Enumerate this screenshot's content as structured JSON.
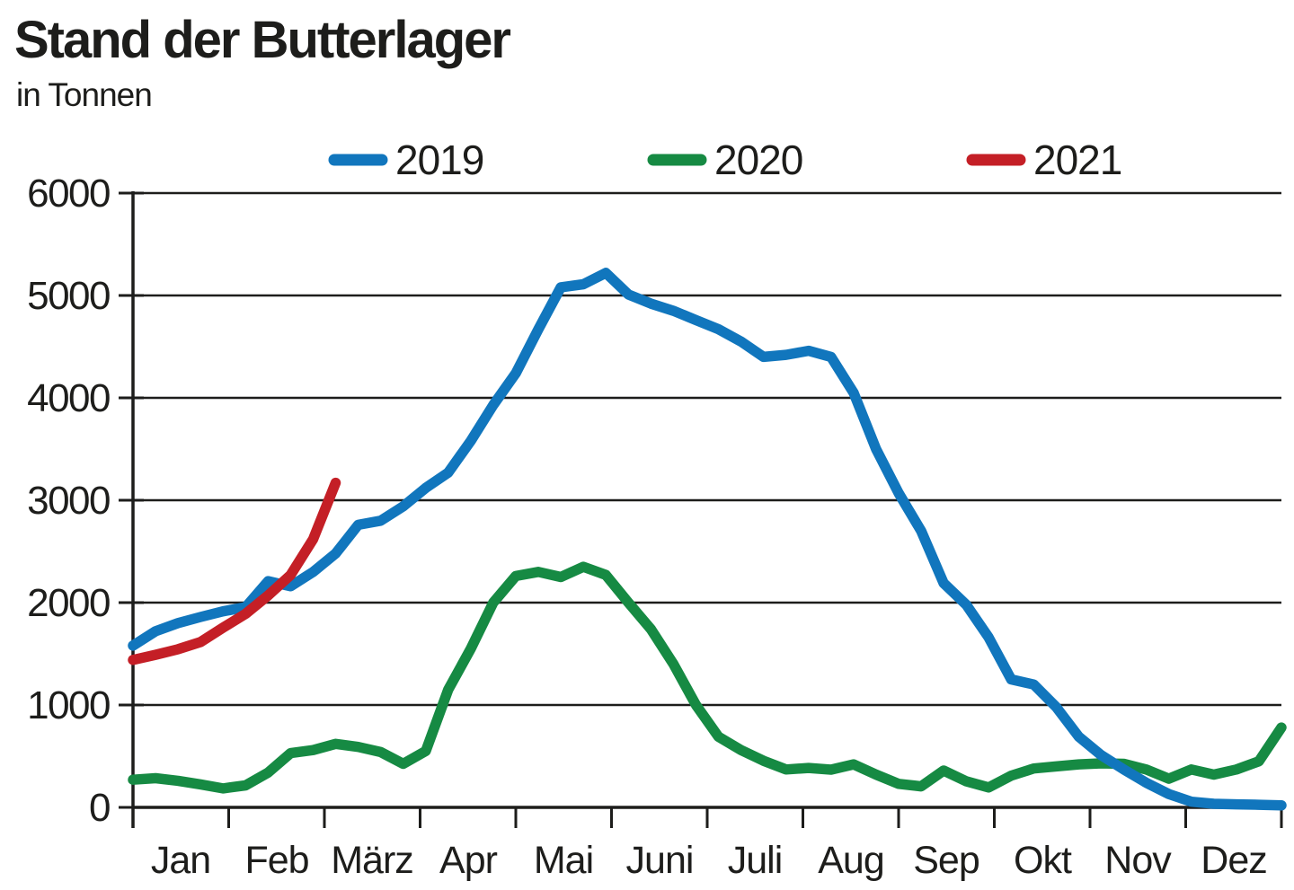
{
  "header": {
    "title": "Stand der Butterlager",
    "subtitle": "in Tonnen"
  },
  "chart_data": {
    "type": "line",
    "title": "Stand der Butterlager",
    "ylabel": "in Tonnen",
    "resolution": "weekly values per calendar year",
    "legend_position": "top",
    "grid": "horizontal gridlines every 1000",
    "y_axis": {
      "min": 0,
      "max": 6000,
      "tick_labels": [
        "6000",
        "5000",
        "4000",
        "3000",
        "2000",
        "1000",
        "0"
      ]
    },
    "x_axis": {
      "categories": [
        "Jan",
        "Feb",
        "März",
        "Apr",
        "Mai",
        "Juni",
        "Juli",
        "Aug",
        "Sep",
        "Okt",
        "Nov",
        "Dez"
      ]
    },
    "series": [
      {
        "name": "2019",
        "color": "#1176bd",
        "values": [
          1580,
          1720,
          1800,
          1860,
          1915,
          1955,
          2210,
          2160,
          2300,
          2480,
          2760,
          2800,
          2940,
          3120,
          3270,
          3580,
          3930,
          4240,
          4670,
          5080,
          5110,
          5220,
          5010,
          4920,
          4850,
          4760,
          4670,
          4550,
          4400,
          4420,
          4460,
          4400,
          4050,
          3500,
          3070,
          2700,
          2190,
          1980,
          1660,
          1250,
          1200,
          980,
          690,
          510,
          370,
          240,
          130,
          55,
          35,
          30,
          25,
          20
        ]
      },
      {
        "name": "2020",
        "color": "#168a43",
        "values": [
          270,
          285,
          260,
          225,
          185,
          215,
          340,
          530,
          560,
          620,
          590,
          540,
          425,
          550,
          1150,
          1550,
          2000,
          2260,
          2300,
          2250,
          2350,
          2270,
          2000,
          1740,
          1400,
          1000,
          690,
          560,
          455,
          370,
          385,
          368,
          420,
          320,
          230,
          205,
          360,
          255,
          195,
          310,
          380,
          400,
          420,
          430,
          425,
          370,
          280,
          370,
          320,
          370,
          450,
          780
        ]
      },
      {
        "name": "2021",
        "color": "#c41f26",
        "values": [
          1440,
          1490,
          1545,
          1615,
          1755,
          1890,
          2070,
          2270,
          2620,
          3170
        ]
      }
    ]
  }
}
